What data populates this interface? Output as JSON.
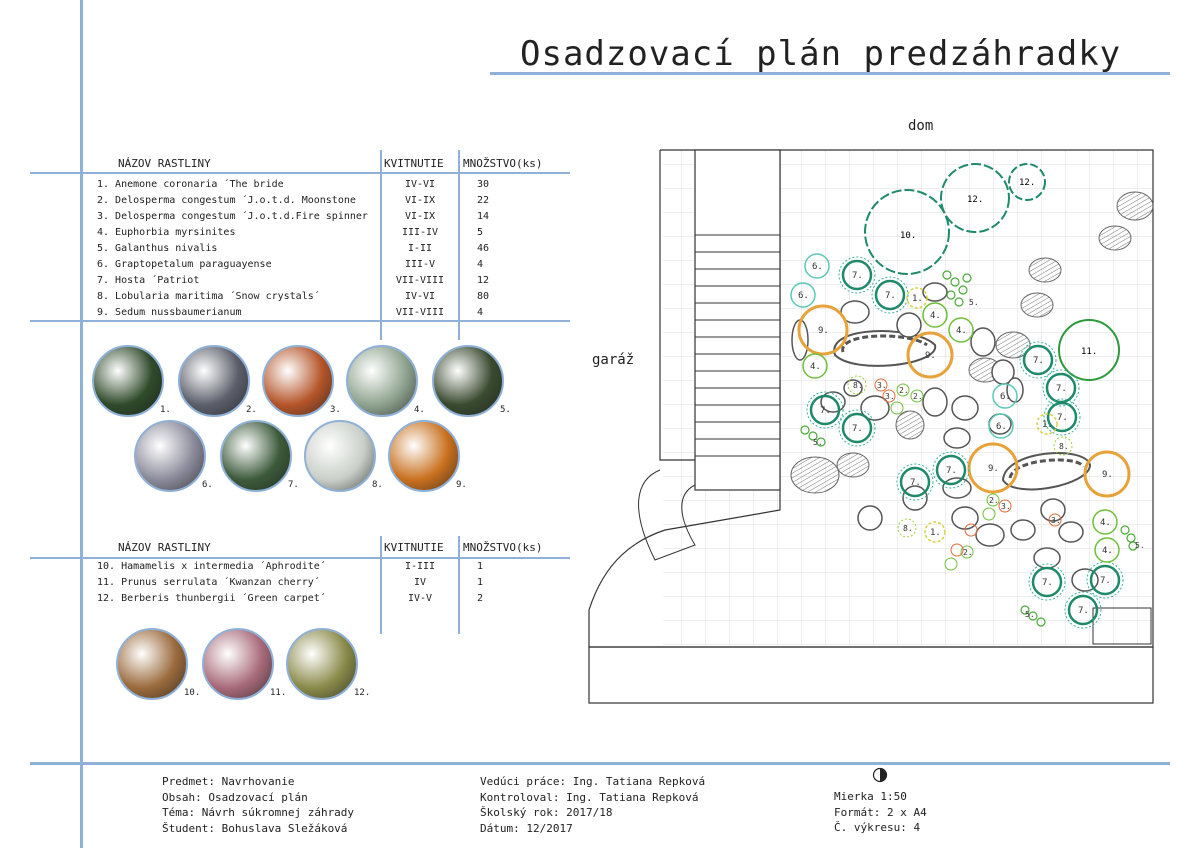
{
  "title": "Osadzovací plán predzáhradky",
  "table1": {
    "headers": [
      "NÁZOV RASTLINY",
      "KVITNUTIE",
      "MNOŽSTVO(ks)"
    ],
    "rows": [
      {
        "name": "1. Anemone coronaria ´The bride",
        "bloom": "IV-VI",
        "qty": "30"
      },
      {
        "name": "2. Delosperma congestum ´J.o.t.d. Moonstone",
        "bloom": "VI-IX",
        "qty": "22"
      },
      {
        "name": "3. Delosperma congestum ´J.o.t.d.Fire spinner",
        "bloom": "VI-IX",
        "qty": "14"
      },
      {
        "name": "4. Euphorbia myrsinites",
        "bloom": "III-IV",
        "qty": "5"
      },
      {
        "name": "5. Galanthus nivalis",
        "bloom": "I-II",
        "qty": "46"
      },
      {
        "name": "6. Graptopetalum paraguayense",
        "bloom": "III-V",
        "qty": "4"
      },
      {
        "name": "7. Hosta ´Patriot",
        "bloom": "VII-VIII",
        "qty": "12"
      },
      {
        "name": "8. Lobularia maritima ´Snow crystals´",
        "bloom": "IV-VI",
        "qty": "80"
      },
      {
        "name": "9. Sedum nussbaumerianum",
        "bloom": "VII-VIII",
        "qty": "4"
      }
    ]
  },
  "table2": {
    "headers": [
      "NÁZOV RASTLINY",
      "KVITNUTIE",
      "MNOŽSTVO(ks)"
    ],
    "rows": [
      {
        "name": "10. Hamamelis x intermedia ´Aphrodite´",
        "bloom": "I-III",
        "qty": "1"
      },
      {
        "name": "11. Prunus serrulata ´Kwanzan cherry´",
        "bloom": "IV",
        "qty": "1"
      },
      {
        "name": "12. Berberis thunbergii ´Green carpet´",
        "bloom": "IV-V",
        "qty": "2"
      }
    ]
  },
  "photo_labels": [
    "1.",
    "2.",
    "3.",
    "4.",
    "5.",
    "6.",
    "7.",
    "8.",
    "9.",
    "10.",
    "11.",
    "12."
  ],
  "photo_colors": [
    "#2f4a2a",
    "#5b5f6a",
    "#b5552a",
    "#8fa38f",
    "#3a4a30",
    "#8b8a9a",
    "#3c5a3a",
    "#c9cfc8",
    "#c9701e",
    "#9a6a3c",
    "#a86a7a",
    "#8a8a4a"
  ],
  "plan": {
    "dom_label": "dom",
    "garaz_label": "garáž"
  },
  "footer": {
    "col1": [
      "Predmet: Navrhovanie",
      "Obsah: Osadzovací plán",
      "Téma: Návrh súkromnej záhrady",
      "Študent: Bohuslava Sležáková"
    ],
    "col2": [
      "Vedúci práce: Ing. Tatiana Repková",
      "Kontroloval: Ing. Tatiana Repková",
      "Školský rok: 2017/18",
      "Dátum: 12/2017"
    ],
    "col3": [
      "Mierka 1:50",
      "Formát: 2 x A4",
      "Č. výkresu: 4"
    ]
  },
  "colors": {
    "accent_blue": "#8fb1d8",
    "plant_green": "#6fbf3a",
    "plant_teal": "#1f8a6a",
    "plant_orange": "#e8a23a",
    "stone_grey": "#9a9a9a"
  }
}
